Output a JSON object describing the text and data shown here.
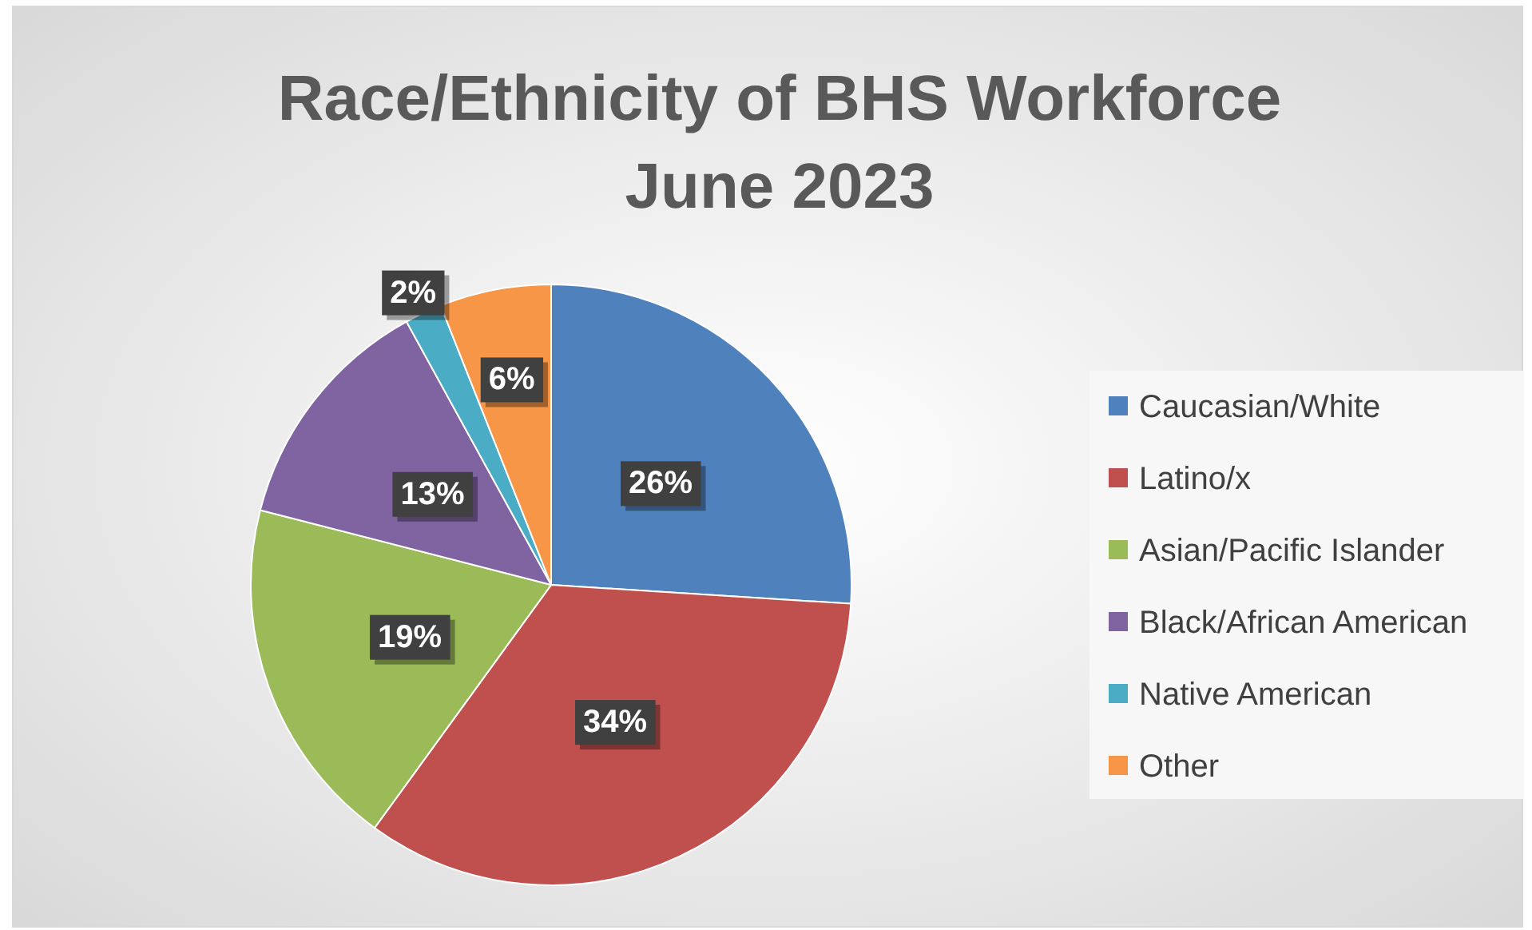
{
  "chart_data": {
    "type": "pie",
    "title": "Race/Ethnicity of BHS Workforce\nJune 2023",
    "categories": [
      "Caucasian/White",
      "Latino/x",
      "Asian/Pacific Islander",
      "Black/African American",
      "Native American",
      "Other"
    ],
    "values": [
      26,
      34,
      19,
      13,
      2,
      6
    ],
    "colors": [
      "#4f81bd",
      "#c0504d",
      "#9bbb59",
      "#8064a2",
      "#4bacc6",
      "#f79646"
    ],
    "value_labels": [
      "26%",
      "34%",
      "19%",
      "13%",
      "2%",
      "6%"
    ],
    "legend": "right"
  }
}
